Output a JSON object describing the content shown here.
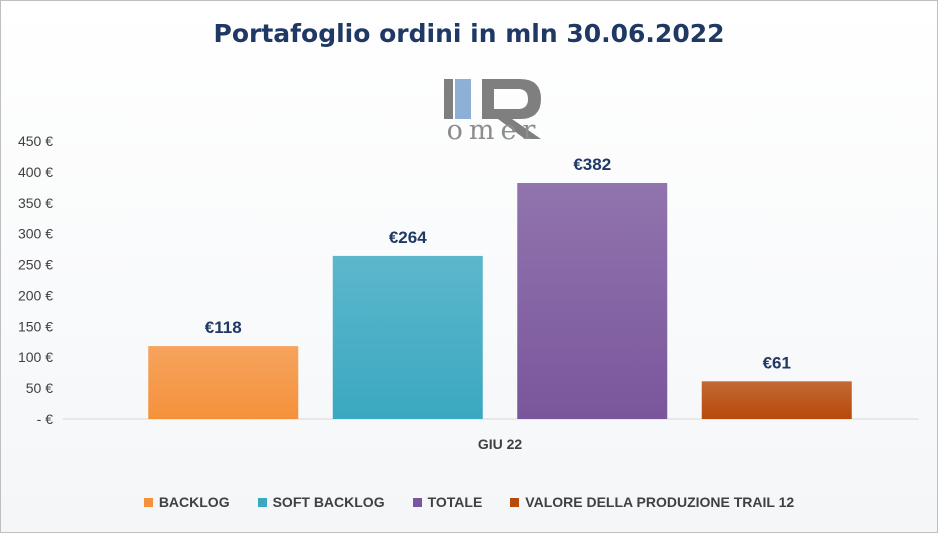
{
  "title": "Portafoglio ordini in mln 30.06.2022",
  "logo": {
    "text": "omer"
  },
  "chart_data": {
    "type": "bar",
    "categories": [
      "GIU 22"
    ],
    "series": [
      {
        "name": "BACKLOG",
        "values": [
          118
        ],
        "label": "€118",
        "color": "#f5913b"
      },
      {
        "name": "SOFT BACKLOG",
        "values": [
          264
        ],
        "label": "€264",
        "color": "#3aa8c1"
      },
      {
        "name": "TOTALE",
        "values": [
          382
        ],
        "label": "€382",
        "color": "#7a569c"
      },
      {
        "name": "VALORE DELLA PRODUZIONE TRAIL 12",
        "values": [
          61
        ],
        "label": "€61",
        "color": "#b7490a"
      }
    ],
    "ylim": [
      0,
      450
    ],
    "yticks": [
      0,
      50,
      100,
      150,
      200,
      250,
      300,
      350,
      400,
      450
    ],
    "ytick_labels": [
      "- €",
      "50 €",
      "100 €",
      "150 €",
      "200 €",
      "250 €",
      "300 €",
      "350 €",
      "400 €",
      "450 €"
    ],
    "grid": false,
    "legend_position": "bottom"
  }
}
